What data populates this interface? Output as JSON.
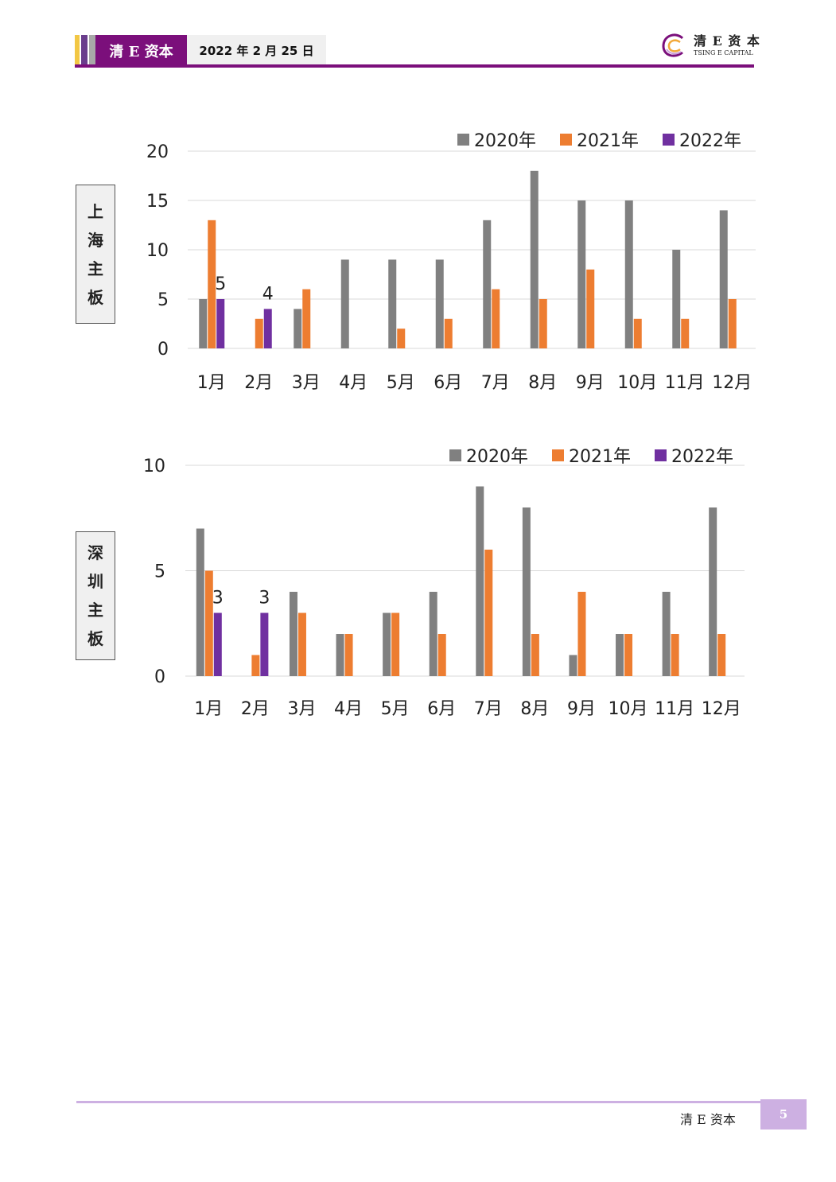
{
  "header": {
    "brand": "清 E 资本",
    "date": "2022 年 2 月 25 日",
    "logo_cn": "清 E 资 本",
    "logo_en": "TSING E CAPITAL",
    "colors": {
      "primary": "#7b0f7b",
      "stripe_gold": "#f2c744",
      "stripe_purple": "#6a3d8c",
      "stripe_gray": "#a8a8a8"
    }
  },
  "footer": {
    "brand": "清 E 资本",
    "page": "5"
  },
  "side_labels": [
    {
      "chars": [
        "上",
        "海",
        "主",
        "板"
      ]
    },
    {
      "chars": [
        "深",
        "圳",
        "主",
        "板"
      ]
    }
  ],
  "chart_data": [
    {
      "type": "bar",
      "categories": [
        "1月",
        "2月",
        "3月",
        "4月",
        "5月",
        "6月",
        "7月",
        "8月",
        "9月",
        "10月",
        "11月",
        "12月"
      ],
      "series": [
        {
          "name": "2020年",
          "color": "#808080",
          "values": [
            5,
            null,
            4,
            9,
            9,
            9,
            13,
            18,
            15,
            15,
            10,
            14
          ]
        },
        {
          "name": "2021年",
          "color": "#ed7d31",
          "values": [
            13,
            3,
            6,
            null,
            2,
            3,
            6,
            5,
            8,
            3,
            3,
            5
          ]
        },
        {
          "name": "2022年",
          "color": "#7030a0",
          "values": [
            5,
            4,
            null,
            null,
            null,
            null,
            null,
            null,
            null,
            null,
            null,
            null
          ]
        }
      ],
      "data_labels": [
        {
          "series": "2022年",
          "category": "1月",
          "text": "5"
        },
        {
          "series": "2022年",
          "category": "2月",
          "text": "4"
        }
      ],
      "yticks": [
        "0",
        "5",
        "10",
        "15",
        "20"
      ],
      "ylim": [
        0,
        20
      ],
      "grid": true,
      "legend": "top-right"
    },
    {
      "type": "bar",
      "categories": [
        "1月",
        "2月",
        "3月",
        "4月",
        "5月",
        "6月",
        "7月",
        "8月",
        "9月",
        "10月",
        "11月",
        "12月"
      ],
      "series": [
        {
          "name": "2020年",
          "color": "#808080",
          "values": [
            7,
            null,
            4,
            2,
            3,
            4,
            9,
            8,
            1,
            2,
            4,
            8
          ]
        },
        {
          "name": "2021年",
          "color": "#ed7d31",
          "values": [
            5,
            1,
            3,
            2,
            3,
            2,
            6,
            2,
            4,
            2,
            2,
            2
          ]
        },
        {
          "name": "2022年",
          "color": "#7030a0",
          "values": [
            3,
            3,
            null,
            null,
            null,
            null,
            null,
            null,
            null,
            null,
            null,
            null
          ]
        }
      ],
      "data_labels": [
        {
          "series": "2022年",
          "category": "1月",
          "text": "3"
        },
        {
          "series": "2022年",
          "category": "2月",
          "text": "3"
        }
      ],
      "yticks": [
        "0",
        "5",
        "10"
      ],
      "ylim": [
        0,
        10
      ],
      "grid": true,
      "legend": "top-right"
    }
  ]
}
